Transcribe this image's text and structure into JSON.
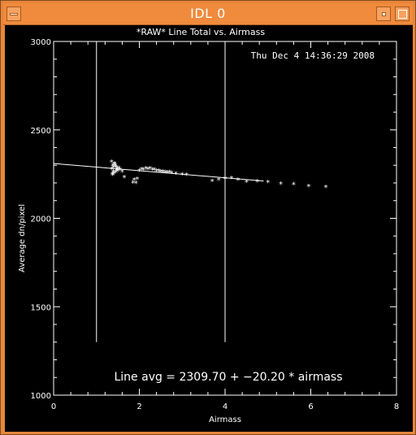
{
  "window": {
    "title": "IDL 0",
    "icons": {
      "menu": "window-menu-icon",
      "minimize": "minimize-icon",
      "maximize": "maximize-icon"
    }
  },
  "plot": {
    "timestamp": "Thu Dec  4 14:36:29 2008",
    "fit_label": "Line avg = 2309.70 + −20.20 * airmass"
  },
  "chart_data": {
    "type": "scatter",
    "title": "*RAW* Line Total vs. Airmass",
    "xlabel": "Airmass",
    "ylabel": "Average dn/pixel",
    "xlim": [
      0,
      8
    ],
    "ylim": [
      1000,
      3000
    ],
    "xticks": [
      0,
      2,
      4,
      6,
      8
    ],
    "yticks": [
      1000,
      1500,
      2000,
      2500,
      3000
    ],
    "grid": false,
    "fit": {
      "intercept": 2309.7,
      "slope": -20.2,
      "x_range": [
        0,
        4.9
      ]
    },
    "vlines": [
      {
        "x": 1.0,
        "y_range": [
          1300,
          3000
        ]
      },
      {
        "x": 4.0,
        "y_range": [
          1300,
          3000
        ]
      }
    ],
    "points": [
      [
        1.35,
        2320
      ],
      [
        1.38,
        2300
      ],
      [
        1.4,
        2290
      ],
      [
        1.42,
        2310
      ],
      [
        1.36,
        2280
      ],
      [
        1.39,
        2265
      ],
      [
        1.41,
        2255
      ],
      [
        1.37,
        2250
      ],
      [
        1.44,
        2300
      ],
      [
        1.46,
        2290
      ],
      [
        1.48,
        2280
      ],
      [
        1.5,
        2270
      ],
      [
        1.52,
        2285
      ],
      [
        1.45,
        2262
      ],
      [
        1.38,
        2245
      ],
      [
        1.55,
        2275
      ],
      [
        1.6,
        2265
      ],
      [
        1.65,
        2232
      ],
      [
        1.42,
        2305
      ],
      [
        1.47,
        2272
      ],
      [
        1.85,
        2202
      ],
      [
        1.92,
        2200
      ],
      [
        1.88,
        2218
      ],
      [
        1.95,
        2222
      ],
      [
        2.0,
        2270
      ],
      [
        2.05,
        2278
      ],
      [
        2.1,
        2276
      ],
      [
        2.15,
        2282
      ],
      [
        2.2,
        2278
      ],
      [
        2.25,
        2283
      ],
      [
        2.3,
        2276
      ],
      [
        2.35,
        2275
      ],
      [
        2.4,
        2270
      ],
      [
        2.45,
        2268
      ],
      [
        2.5,
        2265
      ],
      [
        2.55,
        2264
      ],
      [
        2.6,
        2262
      ],
      [
        2.65,
        2260
      ],
      [
        2.7,
        2262
      ],
      [
        2.75,
        2258
      ],
      [
        2.85,
        2252
      ],
      [
        3.0,
        2248
      ],
      [
        3.1,
        2247
      ],
      [
        3.7,
        2212
      ],
      [
        3.85,
        2218
      ],
      [
        4.0,
        2226
      ],
      [
        4.15,
        2228
      ],
      [
        4.3,
        2218
      ],
      [
        4.5,
        2208
      ],
      [
        4.75,
        2210
      ],
      [
        5.0,
        2204
      ],
      [
        5.3,
        2196
      ],
      [
        5.6,
        2192
      ],
      [
        5.95,
        2182
      ],
      [
        6.35,
        2178
      ]
    ]
  }
}
